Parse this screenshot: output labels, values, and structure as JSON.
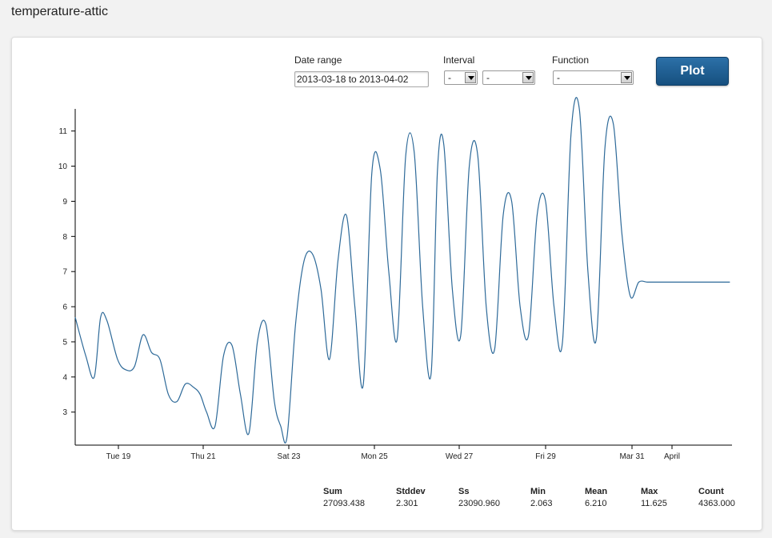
{
  "page": {
    "title": "temperature-attic"
  },
  "controls": {
    "date_range_label": "Date range",
    "date_range_value": "2013-03-18 to 2013-04-02",
    "interval_label": "Interval",
    "interval_value_1": "-",
    "interval_value_2": "-",
    "function_label": "Function",
    "function_value": "-",
    "plot_label": "Plot"
  },
  "colors": {
    "line": "#2e6a99",
    "button": "#1f5f96"
  },
  "chart_data": {
    "type": "line",
    "x_tick_labels": [
      "Tue 19",
      "Thu 21",
      "Sat 23",
      "Mon 25",
      "Wed 27",
      "Fri 29",
      "Mar 31",
      "April"
    ],
    "y_ticks": [
      3,
      4,
      5,
      6,
      7,
      8,
      9,
      10,
      11
    ],
    "ylim": [
      2.06,
      11.63
    ],
    "xlim": [
      0,
      15.5
    ],
    "series": [
      {
        "x": [
          0,
          0.25,
          0.45,
          0.6,
          0.75,
          1.0,
          1.2,
          1.4,
          1.6,
          1.8,
          2.0,
          2.2,
          2.4,
          2.6,
          2.8,
          2.95,
          3.1,
          3.3,
          3.5,
          3.7,
          3.9,
          4.1,
          4.3,
          4.5,
          4.7,
          4.85,
          5.0,
          5.2,
          5.4,
          5.6,
          5.8,
          6.0,
          6.2,
          6.4,
          6.6,
          6.8,
          7.0,
          7.2,
          7.4,
          7.6,
          7.8,
          8.0,
          8.2,
          8.4,
          8.55,
          8.7,
          8.9,
          9.1,
          9.3,
          9.5,
          9.7,
          9.9,
          10.1,
          10.3,
          10.5,
          10.7,
          10.9,
          11.1,
          11.3,
          11.5,
          11.7,
          11.9,
          12.1,
          12.3,
          12.5,
          12.7,
          12.9,
          13.1,
          13.3,
          13.5,
          13.7,
          13.9,
          14.1,
          14.3,
          14.5,
          14.7,
          14.9,
          15.1,
          15.3,
          15.45
        ],
        "y": [
          5.7,
          4.6,
          4.0,
          5.7,
          5.6,
          4.5,
          4.2,
          4.3,
          5.2,
          4.7,
          4.5,
          3.5,
          3.3,
          3.8,
          3.7,
          3.5,
          3.0,
          2.6,
          4.6,
          4.9,
          3.5,
          2.4,
          5.0,
          5.5,
          3.3,
          2.6,
          2.3,
          5.5,
          7.3,
          7.5,
          6.5,
          4.5,
          7.3,
          8.6,
          6.0,
          3.8,
          9.8,
          9.9,
          7.0,
          5.1,
          10.3,
          10.4,
          6.0,
          4.1,
          9.9,
          10.6,
          6.5,
          5.2,
          10.0,
          10.3,
          6.0,
          4.8,
          8.6,
          9.0,
          6.0,
          5.2,
          8.6,
          9.0,
          6.0,
          5.0,
          10.9,
          11.6,
          7.0,
          5.1,
          10.5,
          11.2,
          8.1,
          6.3,
          6.7,
          6.7,
          6.7,
          6.7,
          6.7,
          6.7,
          6.7,
          6.7,
          6.7,
          6.7,
          6.7,
          6.7
        ]
      }
    ]
  },
  "stats": [
    {
      "label": "Sum",
      "value": "27093.438"
    },
    {
      "label": "Stddev",
      "value": "2.301"
    },
    {
      "label": "Ss",
      "value": "23090.960"
    },
    {
      "label": "Min",
      "value": "2.063"
    },
    {
      "label": "Mean",
      "value": "6.210"
    },
    {
      "label": "Max",
      "value": "11.625"
    },
    {
      "label": "Count",
      "value": "4363.000"
    }
  ]
}
